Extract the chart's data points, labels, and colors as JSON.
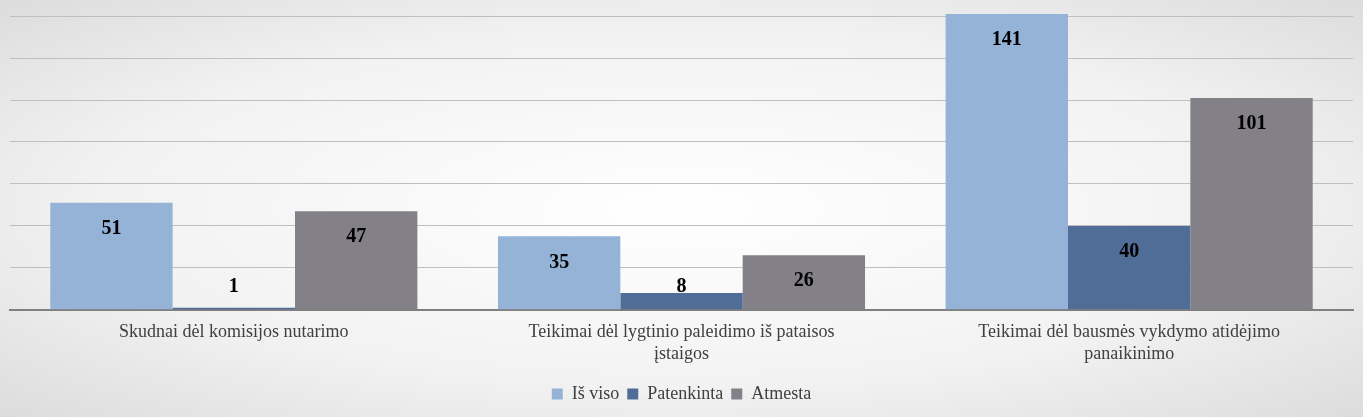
{
  "chart_data": {
    "type": "bar",
    "categories": [
      "Skudnai dėl komisijos nutarimo",
      "Teikimai dėl lygtinio paleidimo iš pataisos įstaigos",
      "Teikimai dėl bausmės vykdymo atidėjimo panaikinimo"
    ],
    "series": [
      {
        "name": "Iš viso",
        "color": "#95b3d7",
        "values": [
          51,
          35,
          141
        ]
      },
      {
        "name": "Patenkinta",
        "color": "#4f6d97",
        "values": [
          1,
          8,
          40
        ]
      },
      {
        "name": "Atmesta",
        "color": "#838187",
        "values": [
          47,
          26,
          101
        ]
      }
    ],
    "yticks": [
      {
        "value": 0,
        "label": null
      },
      {
        "value": 20,
        "label": null
      },
      {
        "value": 40,
        "label": null
      },
      {
        "value": 60,
        "label": null
      },
      {
        "value": 80,
        "label": null
      },
      {
        "value": 100,
        "label": null
      },
      {
        "value": 120,
        "label": null
      },
      {
        "value": 140,
        "label": null
      }
    ],
    "grid": "y",
    "tick_labels": "x",
    "legend": "bottom",
    "data_labels": true
  }
}
